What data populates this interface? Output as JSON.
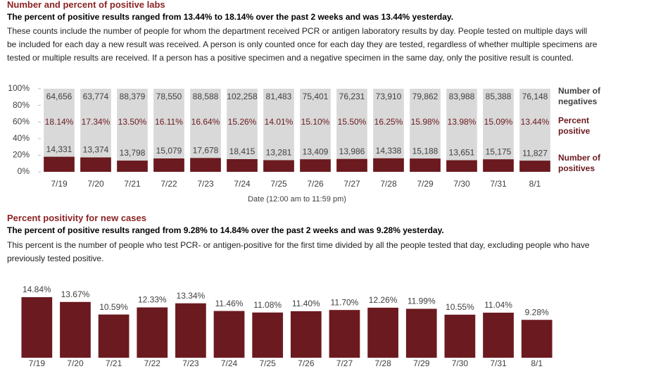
{
  "chart_data": [
    {
      "type": "bar",
      "title": "Number and percent of positive labs",
      "subtitle": "The percent of positive results ranged from 13.44% to 18.14% over the past 2 weeks and was 13.44% yesterday.",
      "description": "These counts include the number of people for whom the department received PCR or antigen laboratory results by day. People tested on multiple days will be included for each day a new result was received. A person is only counted once for each day they are tested, regardless of whether multiple specimens are tested or multiple results are received. If a person has a positive specimen and a negative specimen in the same day, only the positive result is counted.",
      "x_label": "Date (12:00 am to 11:59 pm)",
      "categories": [
        "7/19",
        "7/20",
        "7/21",
        "7/22",
        "7/23",
        "7/24",
        "7/25",
        "7/26",
        "7/27",
        "7/28",
        "7/29",
        "7/30",
        "7/31",
        "8/1"
      ],
      "ylim": [
        0,
        100
      ],
      "yticks": [
        {
          "value": 0,
          "label": "0%"
        },
        {
          "value": 20,
          "label": "20%"
        },
        {
          "value": 40,
          "label": "40%"
        },
        {
          "value": 60,
          "label": "60%"
        },
        {
          "value": 80,
          "label": "80%"
        },
        {
          "value": 100,
          "label": "100%"
        }
      ],
      "series": [
        {
          "name": "Number of negatives",
          "color": "#d9d9d9",
          "values": [
            64656,
            63774,
            88379,
            78550,
            88588,
            102258,
            81483,
            75401,
            76231,
            73910,
            79862,
            83988,
            85388,
            76148
          ],
          "value_labels": [
            "64,656",
            "63,774",
            "88,379",
            "78,550",
            "88,588",
            "102,258",
            "81,483",
            "75,401",
            "76,231",
            "73,910",
            "79,862",
            "83,988",
            "85,388",
            "76,148"
          ]
        },
        {
          "name": "Percent positive",
          "color": "#6b1a1f",
          "values": [
            18.14,
            17.34,
            13.5,
            16.11,
            16.64,
            15.26,
            14.01,
            15.1,
            15.5,
            16.25,
            15.98,
            13.98,
            15.09,
            13.44
          ],
          "value_labels": [
            "18.14%",
            "17.34%",
            "13.50%",
            "16.11%",
            "16.64%",
            "15.26%",
            "14.01%",
            "15.10%",
            "15.50%",
            "16.25%",
            "15.98%",
            "13.98%",
            "15.09%",
            "13.44%"
          ]
        },
        {
          "name": "Number of positives",
          "color": "#6b1a1f",
          "values": [
            14331,
            13374,
            13798,
            15079,
            17678,
            18415,
            13281,
            13409,
            13986,
            14338,
            15188,
            13651,
            15175,
            11827
          ],
          "value_labels": [
            "14,331",
            "13,374",
            "13,798",
            "15,079",
            "17,678",
            "18,415",
            "13,281",
            "13,409",
            "13,986",
            "14,338",
            "15,188",
            "13,651",
            "15,175",
            "11,827"
          ]
        }
      ]
    },
    {
      "type": "bar",
      "title": "Percent positivity for new cases",
      "subtitle": "The percent of positive results ranged from 9.28% to 14.84% over the past 2 weeks and was 9.28% yesterday.",
      "description": "This percent is the number of people who test PCR- or antigen-positive for the first time divided by all the people tested that day, excluding people who have previously tested positive.",
      "categories": [
        "7/19",
        "7/20",
        "7/21",
        "7/22",
        "7/23",
        "7/24",
        "7/25",
        "7/26",
        "7/27",
        "7/28",
        "7/29",
        "7/30",
        "7/31",
        "8/1"
      ],
      "color": "#6b1a1f",
      "values": [
        14.84,
        13.67,
        10.59,
        12.33,
        13.34,
        11.46,
        11.08,
        11.4,
        11.7,
        12.26,
        11.99,
        10.55,
        11.04,
        9.28
      ],
      "value_labels": [
        "14.84%",
        "13.67%",
        "10.59%",
        "12.33%",
        "13.34%",
        "11.46%",
        "11.08%",
        "11.40%",
        "11.70%",
        "12.26%",
        "11.99%",
        "10.55%",
        "11.04%",
        "9.28%"
      ]
    }
  ]
}
